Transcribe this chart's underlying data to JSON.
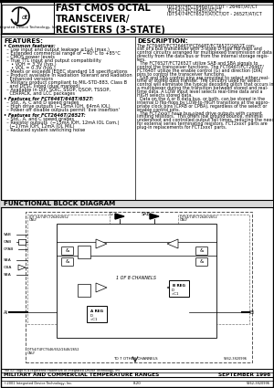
{
  "title_main": "FAST CMOS OCTAL\nTRANSCEIVER/\nREGISTERS (3-STATE)",
  "part_numbers_line1": "IDT54/74FCT646AT/CT/DT - 2646T/AT/CT",
  "part_numbers_line2": "IDT54/74FCT648T/AT/CT",
  "part_numbers_line3": "IDT54/74FCT652T/AT/CT/DT - 2652T/AT/CT",
  "features_title": "FEATURES:",
  "features_lines": [
    [
      "• Common features:",
      true,
      0
    ],
    [
      "  – Low input and output leakage ≤1μA (max.)",
      false,
      0
    ],
    [
      "  – Extended commercial range of −40°C to +85°C",
      false,
      0
    ],
    [
      "  – CMOS power levels",
      false,
      0
    ],
    [
      "  – True TTL input and output compatibility",
      false,
      0
    ],
    [
      "     • VOH = 3.3V (typ.)",
      false,
      0
    ],
    [
      "     • VOL = 0.3V (typ.)",
      false,
      0
    ],
    [
      "  – Meets or exceeds JEDEC standard 18 specifications",
      false,
      0
    ],
    [
      "  – Product available in Radiation Tolerant and Radiation",
      false,
      0
    ],
    [
      "    Enhanced versions",
      false,
      0
    ],
    [
      "  – Military product compliant to MIL-STD-883, Class B",
      false,
      0
    ],
    [
      "    and DESC listed (dual marked)",
      false,
      0
    ],
    [
      "  – Available in DIP, SOIC, SSOP, QSOP, TSSOP,",
      false,
      0
    ],
    [
      "    CERPACK, and LCC packages",
      false,
      0
    ],
    [
      "• Features for FCT646T/648T/652T:",
      true,
      2
    ],
    [
      "  – Std., A, C and D speed grades",
      false,
      0
    ],
    [
      "  – High drive outputs (−15mA IOH, 64mA IOL)",
      false,
      0
    ],
    [
      "  – Power off disable outputs permit 'live insertion'",
      false,
      0
    ],
    [
      "• Features for FCT2646T/2652T:",
      true,
      2
    ],
    [
      "  – Std., A, and C speed grades",
      false,
      0
    ],
    [
      "  – Resistor outputs  (−15mA IOH, 12mA IOL Com.)",
      false,
      0
    ],
    [
      "    (−17mA IOH, 12mA IOL MIL)",
      false,
      0
    ],
    [
      "  – Reduced system switching noise",
      false,
      0
    ]
  ],
  "description_title": "DESCRIPTION:",
  "description_lines": [
    "The FCT646T/FCT2646T/FCT648T/FCT652T/2652T con-",
    "sist of a bus transceiver with 3-state D-type flip-flops and",
    "control circuitry arranged for multiplexed transmission of data",
    "directly from the data bus or from the internal storage regis-",
    "ters.",
    "  The FCT652T/FCT2652T utilize SAB and SBA signals to",
    "control the transceiver functions. The FCT646T/FCT2646T/",
    "FCT648T utilize the enable control (G) and direction (DIR)",
    "pins to control the transceiver functions.",
    "  SAB and SBA control pins are provided to select either real-",
    "time or stored data transfer. The circuitry used for select",
    "control will eliminate the typical decoding glitch that occurs in",
    "a multiplexer during the transition between stored and real-",
    "time data. A LOW input level selects real-time data and a",
    "HIGH selects stored data.",
    "  Data on the A or B data bus, or both, can be stored in the",
    "internal D flip-flops by LOW-to-HIGH transitions at the appro-",
    "priate clock pins (CPAB or CPBA), regardless of the select or",
    "enable control pins.",
    "  The FCT2xxxT have bus-sized drive outputs with current",
    "limiting resistors.  This offers low ground bounce, minimal",
    "undershoot and controlled output fall times, reducing the need",
    "for external series terminating resistors. FCT2xxxT parts are",
    "plug-in replacements for FCT1xxxT parts."
  ],
  "functional_block_title": "FUNCTIONAL BLOCK DIAGRAM",
  "footer_trademark": "The IDT logo is a registered trademark of Integrated Device Technology, Inc.",
  "footer_mil": "MILITARY AND COMMERCIAL TEMPERATURE RANGES",
  "footer_date": "SEPTEMBER 1996",
  "footer_copyright": "©2001 Integrated Device Technology, Inc.",
  "footer_page": "8.20",
  "footer_doc": "5962-3820996",
  "footer_docnum": "1",
  "bg_color": "#ffffff",
  "text_color": "#000000"
}
